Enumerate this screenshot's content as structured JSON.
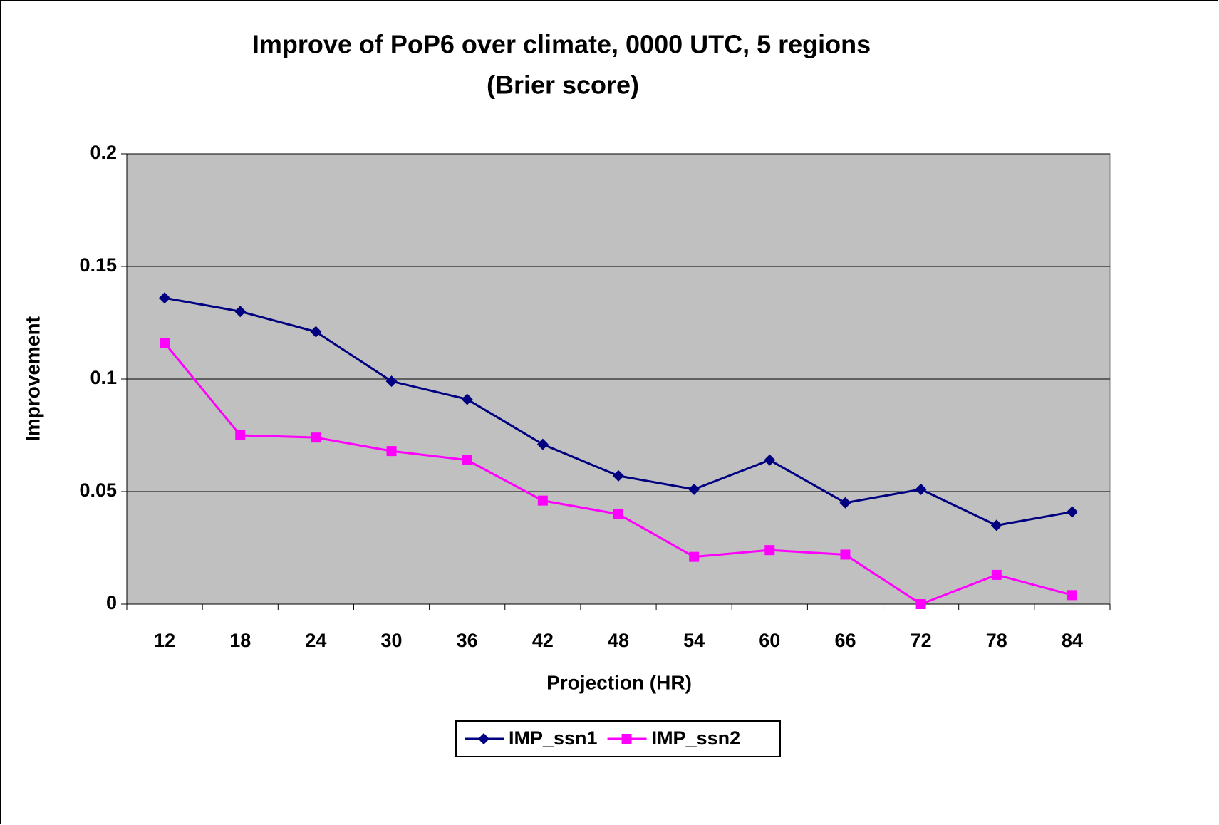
{
  "chart_data": {
    "type": "line",
    "title": "Improve of PoP6 over climate, 0000 UTC, 5 regions",
    "subtitle": "(Brier score)",
    "x_label": "Projection (HR)",
    "y_label": "Improvement",
    "categories": [
      "12",
      "18",
      "24",
      "30",
      "36",
      "42",
      "48",
      "54",
      "60",
      "66",
      "72",
      "78",
      "84"
    ],
    "series": [
      {
        "name": "IMP_ssn1",
        "color": "#000080",
        "marker": "diamond",
        "values": [
          0.136,
          0.13,
          0.121,
          0.099,
          0.091,
          0.071,
          0.057,
          0.051,
          0.064,
          0.045,
          0.051,
          0.035,
          0.041
        ]
      },
      {
        "name": "IMP_ssn2",
        "color": "#FF00FF",
        "marker": "square",
        "values": [
          0.116,
          0.075,
          0.074,
          0.068,
          0.064,
          0.046,
          0.04,
          0.021,
          0.024,
          0.022,
          0,
          0.013,
          0.004
        ]
      }
    ],
    "ylim": [
      0,
      0.2
    ],
    "yticks": [
      0,
      0.05,
      0.1,
      0.15,
      0.2
    ],
    "grid": true,
    "plot_background": "#C0C0C0",
    "legend": "bottom"
  }
}
